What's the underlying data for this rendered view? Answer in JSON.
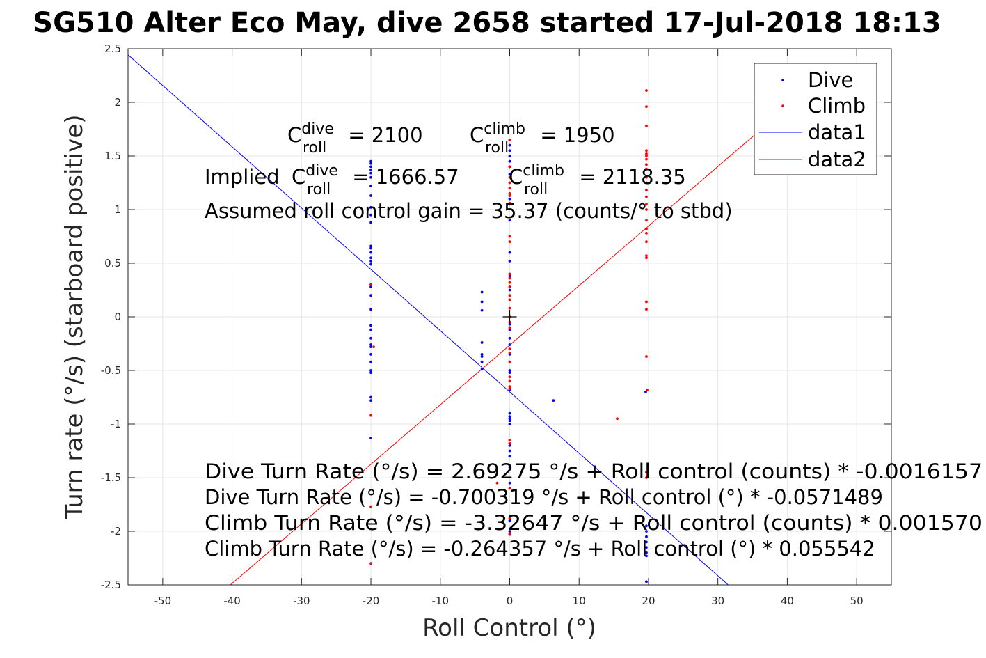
{
  "chart_data": {
    "type": "scatter",
    "title": "SG510 Alter Eco May, dive 2658 started 17-Jul-2018 18:13",
    "xlabel": "Roll Control (°)",
    "ylabel": "Turn rate (°/s) (starboard positive)",
    "xlim": [
      -55,
      55
    ],
    "ylim": [
      -2.5,
      2.5
    ],
    "xticks": [
      -50,
      -40,
      -30,
      -20,
      -10,
      0,
      10,
      20,
      30,
      40,
      50
    ],
    "yticks": [
      -2.5,
      -2,
      -1.5,
      -1,
      -0.5,
      0,
      0.5,
      1,
      1.5,
      2,
      2.5
    ],
    "xtick_labels": [
      "-50",
      "-40",
      "-30",
      "-20",
      "-10",
      "0",
      "10",
      "20",
      "30",
      "40",
      "50"
    ],
    "ytick_labels": [
      "-2.5",
      "-2",
      "-1.5",
      "-1",
      "-0.5",
      "0",
      "0.5",
      "1",
      "1.5",
      "2",
      "2.5"
    ],
    "grid": true,
    "legend_position": "top-right",
    "series": [
      {
        "name": "Dive",
        "kind": "points",
        "color": "#0000ff",
        "points": [
          [
            -20,
            1.45
          ],
          [
            -20,
            1.43
          ],
          [
            -20,
            1.4
          ],
          [
            -20,
            1.37
          ],
          [
            -20,
            1.34
          ],
          [
            -20,
            1.3
          ],
          [
            -20,
            1.22
          ],
          [
            -20,
            1.13
          ],
          [
            -20,
            1.02
          ],
          [
            -20,
            0.95
          ],
          [
            -20,
            0.88
          ],
          [
            -20,
            0.66
          ],
          [
            -20,
            0.64
          ],
          [
            -20,
            0.6
          ],
          [
            -20,
            0.55
          ],
          [
            -20,
            0.52
          ],
          [
            -20,
            0.49
          ],
          [
            -20,
            0.3
          ],
          [
            -20,
            0.28
          ],
          [
            -20,
            0.2
          ],
          [
            -20,
            0.07
          ],
          [
            -20,
            -0.08
          ],
          [
            -20,
            -0.12
          ],
          [
            -20,
            -0.2
          ],
          [
            -20,
            -0.26
          ],
          [
            -20,
            -0.28
          ],
          [
            -20,
            -0.35
          ],
          [
            -20,
            -0.42
          ],
          [
            -20,
            -0.5
          ],
          [
            -20,
            -0.52
          ],
          [
            -20,
            -0.75
          ],
          [
            -20,
            -0.78
          ],
          [
            -20,
            -1.13
          ],
          [
            -4,
            0.23
          ],
          [
            -4,
            0.14
          ],
          [
            -4,
            0.06
          ],
          [
            -4,
            -0.24
          ],
          [
            -4,
            -0.35
          ],
          [
            -4,
            -0.37
          ],
          [
            -4,
            -0.42
          ],
          [
            -4,
            -0.49
          ],
          [
            0,
            1.65
          ],
          [
            0,
            1.6
          ],
          [
            0,
            1.55
          ],
          [
            0,
            1.5
          ],
          [
            0,
            1.45
          ],
          [
            0,
            1.4
          ],
          [
            0,
            1.33
          ],
          [
            0,
            1.1
          ],
          [
            0,
            1.05
          ],
          [
            0,
            0.9
          ],
          [
            0,
            0.6
          ],
          [
            0,
            0.52
          ],
          [
            0,
            0.38
          ],
          [
            0,
            0.25
          ],
          [
            0,
            -0.07
          ],
          [
            0,
            -0.12
          ],
          [
            0,
            -0.2
          ],
          [
            0,
            -0.26
          ],
          [
            0,
            -0.35
          ],
          [
            0,
            -0.5
          ],
          [
            0,
            -0.52
          ],
          [
            0,
            -0.68
          ],
          [
            0,
            -0.9
          ],
          [
            0,
            -0.93
          ],
          [
            0,
            -0.95
          ],
          [
            0,
            -0.97
          ],
          [
            0,
            -1.0
          ],
          [
            0,
            -1.15
          ],
          [
            0,
            -1.18
          ],
          [
            0,
            -1.2
          ],
          [
            0,
            -1.25
          ],
          [
            0,
            -1.3
          ],
          [
            0,
            -1.4
          ],
          [
            0,
            -1.55
          ],
          [
            0,
            -1.9
          ],
          [
            0,
            -2.0
          ],
          [
            0,
            -2.03
          ],
          [
            6.3,
            -0.78
          ],
          [
            19.6,
            -0.7
          ],
          [
            19.7,
            -1.95
          ],
          [
            19.7,
            -2.0
          ],
          [
            19.7,
            -2.05
          ],
          [
            19.7,
            -2.1
          ],
          [
            19.7,
            -2.15
          ],
          [
            19.7,
            -2.2
          ],
          [
            19.7,
            -2.23
          ],
          [
            19.7,
            -2.47
          ]
        ]
      },
      {
        "name": "Climb",
        "kind": "points",
        "color": "#ff0000",
        "points": [
          [
            -20,
            0.3
          ],
          [
            -19.6,
            -0.28
          ],
          [
            -20,
            -0.92
          ],
          [
            -20,
            -1.77
          ],
          [
            -20,
            -2.3
          ],
          [
            0,
            1.65
          ],
          [
            0,
            1.4
          ],
          [
            0,
            1.3
          ],
          [
            0,
            1.25
          ],
          [
            0,
            1.2
          ],
          [
            0,
            1.15
          ],
          [
            0,
            1.13
          ],
          [
            0,
            1.06
          ],
          [
            0,
            0.75
          ],
          [
            0,
            0.7
          ],
          [
            0,
            0.4
          ],
          [
            0,
            0.36
          ],
          [
            0,
            0.32
          ],
          [
            0,
            0.28
          ],
          [
            0,
            0.2
          ],
          [
            0,
            0.16
          ],
          [
            0,
            0.08
          ],
          [
            0,
            0.0
          ],
          [
            0,
            -0.05
          ],
          [
            0,
            -0.1
          ],
          [
            0,
            -0.3
          ],
          [
            0,
            -0.34
          ],
          [
            0,
            -0.42
          ],
          [
            0,
            -0.56
          ],
          [
            0,
            -0.6
          ],
          [
            0,
            -0.65
          ],
          [
            0,
            -0.67
          ],
          [
            0,
            -1.15
          ],
          [
            0,
            -1.18
          ],
          [
            0,
            -1.6
          ],
          [
            0,
            -1.88
          ],
          [
            0,
            -2.02
          ],
          [
            -1.8,
            -1.55
          ],
          [
            15.5,
            -0.95
          ],
          [
            19.7,
            2.11
          ],
          [
            19.7,
            1.96
          ],
          [
            19.7,
            1.78
          ],
          [
            19.7,
            1.55
          ],
          [
            19.7,
            1.52
          ],
          [
            19.7,
            1.5
          ],
          [
            19.7,
            1.47
          ],
          [
            19.7,
            1.42
          ],
          [
            19.7,
            1.38
          ],
          [
            19.7,
            1.3
          ],
          [
            19.7,
            1.25
          ],
          [
            19.7,
            1.18
          ],
          [
            19.7,
            1.12
          ],
          [
            19.7,
            1.05
          ],
          [
            19.7,
            1.0
          ],
          [
            19.7,
            0.9
          ],
          [
            19.7,
            0.82
          ],
          [
            19.7,
            0.78
          ],
          [
            19.7,
            0.7
          ],
          [
            19.7,
            0.57
          ],
          [
            19.7,
            0.55
          ],
          [
            19.7,
            0.14
          ],
          [
            19.7,
            0.07
          ],
          [
            19.7,
            -0.37
          ],
          [
            19.8,
            -0.68
          ],
          [
            19.7,
            -1.45
          ],
          [
            19.7,
            -1.5
          ]
        ]
      },
      {
        "name": "data1",
        "kind": "line",
        "color": "#0000ff",
        "x": [
          -55,
          31.5
        ],
        "y": [
          2.4428,
          -2.5005
        ]
      },
      {
        "name": "data2",
        "kind": "line",
        "color": "#ff0000",
        "x": [
          -44.9,
          45.4
        ],
        "y": [
          -2.7582,
          2.2573
        ]
      }
    ],
    "marker": {
      "x": 0,
      "y": 0,
      "symbol": "+",
      "color": "#000000"
    },
    "annotations": {
      "c_roll_dive": {
        "base": "C",
        "sup": "dive",
        "sub": "roll",
        "rest": " = 2100"
      },
      "c_roll_climb": {
        "base": "C",
        "sup": "climb",
        "sub": "roll",
        "rest": " = 1950"
      },
      "implied_prefix": "Implied ",
      "implied_dive": {
        "base": "C",
        "sup": "dive",
        "sub": "roll",
        "rest": " = 1666.57"
      },
      "implied_climb": {
        "base": "C",
        "sup": "climb",
        "sub": "roll",
        "rest": " = 2118.35"
      },
      "assumed_gain": "Assumed roll control gain = 35.37 (counts/° to stbd)",
      "eq_dive_counts": "Dive Turn Rate (°/s) = 2.69275 °/s + Roll control (counts) * -0.0016157",
      "eq_dive_deg": "Dive Turn Rate (°/s) = -0.700319 °/s + Roll control (°) * -0.0571489",
      "eq_climb_counts": "Climb Turn Rate (°/s) = -3.32647 °/s + Roll control (counts) * 0.001570",
      "eq_climb_deg": "Climb Turn Rate (°/s) = -0.264357 °/s + Roll control (°) * 0.055542"
    }
  }
}
